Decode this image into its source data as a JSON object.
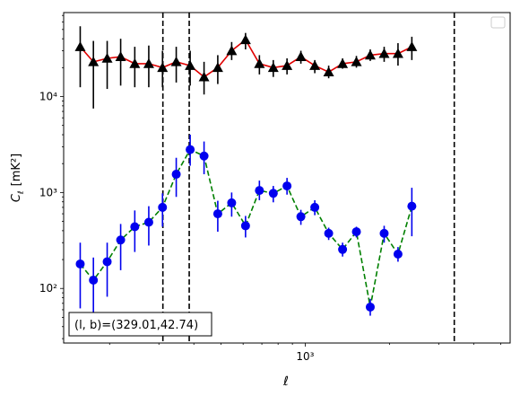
{
  "chart_data": {
    "type": "scatter",
    "title": "",
    "xlabel": "ℓ",
    "ylabel_main": "C",
    "ylabel_sub": "ℓ",
    "ylabel_unit": "[mK²]",
    "xscale": "log",
    "yscale": "log",
    "xlim": [
      137,
      5400
    ],
    "ylim": [
      27,
      75000
    ],
    "x_ticks": [
      {
        "value": 1000,
        "label": "10³"
      }
    ],
    "y_ticks": [
      {
        "value": 100,
        "label": "10²"
      },
      {
        "value": 1000,
        "label": "10³"
      },
      {
        "value": 10000,
        "label": "10⁴"
      }
    ],
    "grid": false,
    "legend": {
      "placement": "top-right",
      "entries": []
    },
    "vlines": [
      310,
      385,
      3410
    ],
    "annotation": "(l, b)=(329.01,42.74)",
    "series": [
      {
        "marker": "triangle",
        "line_style": "solid",
        "marker_color": "#000000",
        "line_color": "#e00000",
        "errorbar_color": "#000000",
        "points": [
          {
            "x": 157,
            "y": 33000,
            "lo": 12500,
            "hi": 54000
          },
          {
            "x": 175,
            "y": 23000,
            "lo": 7500,
            "hi": 38000
          },
          {
            "x": 196,
            "y": 25000,
            "lo": 12000,
            "hi": 38000
          },
          {
            "x": 219,
            "y": 26000,
            "lo": 13000,
            "hi": 40000
          },
          {
            "x": 246,
            "y": 22000,
            "lo": 12500,
            "hi": 33000
          },
          {
            "x": 276,
            "y": 22000,
            "lo": 12500,
            "hi": 34000
          },
          {
            "x": 309,
            "y": 20000,
            "lo": 12500,
            "hi": 30000
          },
          {
            "x": 346,
            "y": 23000,
            "lo": 14000,
            "hi": 33000
          },
          {
            "x": 388,
            "y": 21000,
            "lo": 13000,
            "hi": 30000
          },
          {
            "x": 435,
            "y": 16000,
            "lo": 10500,
            "hi": 23000
          },
          {
            "x": 487,
            "y": 20000,
            "lo": 13500,
            "hi": 27000
          },
          {
            "x": 546,
            "y": 30000,
            "lo": 24000,
            "hi": 37000
          },
          {
            "x": 612,
            "y": 39000,
            "lo": 31000,
            "hi": 46000
          },
          {
            "x": 686,
            "y": 22000,
            "lo": 17000,
            "hi": 27000
          },
          {
            "x": 769,
            "y": 20000,
            "lo": 16000,
            "hi": 24000
          },
          {
            "x": 861,
            "y": 21000,
            "lo": 17000,
            "hi": 25000
          },
          {
            "x": 965,
            "y": 26000,
            "lo": 22000,
            "hi": 30000
          },
          {
            "x": 1082,
            "y": 21000,
            "lo": 17500,
            "hi": 24000
          },
          {
            "x": 1213,
            "y": 18000,
            "lo": 15500,
            "hi": 21000
          },
          {
            "x": 1360,
            "y": 22000,
            "lo": 19500,
            "hi": 25000
          },
          {
            "x": 1524,
            "y": 23000,
            "lo": 20000,
            "hi": 26500
          },
          {
            "x": 1708,
            "y": 27000,
            "lo": 23500,
            "hi": 31000
          },
          {
            "x": 1915,
            "y": 28000,
            "lo": 23000,
            "hi": 33000
          },
          {
            "x": 2146,
            "y": 28000,
            "lo": 21000,
            "hi": 36000
          },
          {
            "x": 2405,
            "y": 33000,
            "lo": 24000,
            "hi": 42000
          }
        ]
      },
      {
        "marker": "circle",
        "line_style": "dashed",
        "marker_color": "#0000ee",
        "line_color": "#008000",
        "errorbar_color": "#0000ee",
        "points": [
          {
            "x": 157,
            "y": 180,
            "lo": 62,
            "hi": 300
          },
          {
            "x": 175,
            "y": 122,
            "lo": 38,
            "hi": 210
          },
          {
            "x": 196,
            "y": 190,
            "lo": 82,
            "hi": 300
          },
          {
            "x": 219,
            "y": 320,
            "lo": 155,
            "hi": 470
          },
          {
            "x": 246,
            "y": 440,
            "lo": 240,
            "hi": 650
          },
          {
            "x": 276,
            "y": 490,
            "lo": 280,
            "hi": 720
          },
          {
            "x": 309,
            "y": 700,
            "lo": 440,
            "hi": 980
          },
          {
            "x": 346,
            "y": 1550,
            "lo": 900,
            "hi": 2300
          },
          {
            "x": 388,
            "y": 2800,
            "lo": 1900,
            "hi": 4000
          },
          {
            "x": 435,
            "y": 2400,
            "lo": 1550,
            "hi": 3400
          },
          {
            "x": 487,
            "y": 600,
            "lo": 390,
            "hi": 820
          },
          {
            "x": 546,
            "y": 780,
            "lo": 560,
            "hi": 1000
          },
          {
            "x": 612,
            "y": 450,
            "lo": 340,
            "hi": 570
          },
          {
            "x": 686,
            "y": 1050,
            "lo": 830,
            "hi": 1330
          },
          {
            "x": 769,
            "y": 980,
            "lo": 790,
            "hi": 1170
          },
          {
            "x": 861,
            "y": 1170,
            "lo": 950,
            "hi": 1420
          },
          {
            "x": 965,
            "y": 560,
            "lo": 460,
            "hi": 660
          },
          {
            "x": 1082,
            "y": 700,
            "lo": 580,
            "hi": 830
          },
          {
            "x": 1213,
            "y": 375,
            "lo": 320,
            "hi": 430
          },
          {
            "x": 1360,
            "y": 255,
            "lo": 215,
            "hi": 300
          },
          {
            "x": 1524,
            "y": 390,
            "lo": 340,
            "hi": 440
          },
          {
            "x": 1708,
            "y": 64,
            "lo": 52,
            "hi": 78
          },
          {
            "x": 1915,
            "y": 375,
            "lo": 300,
            "hi": 450
          },
          {
            "x": 2146,
            "y": 228,
            "lo": 190,
            "hi": 270
          },
          {
            "x": 2405,
            "y": 720,
            "lo": 350,
            "hi": 1120
          }
        ]
      }
    ]
  }
}
